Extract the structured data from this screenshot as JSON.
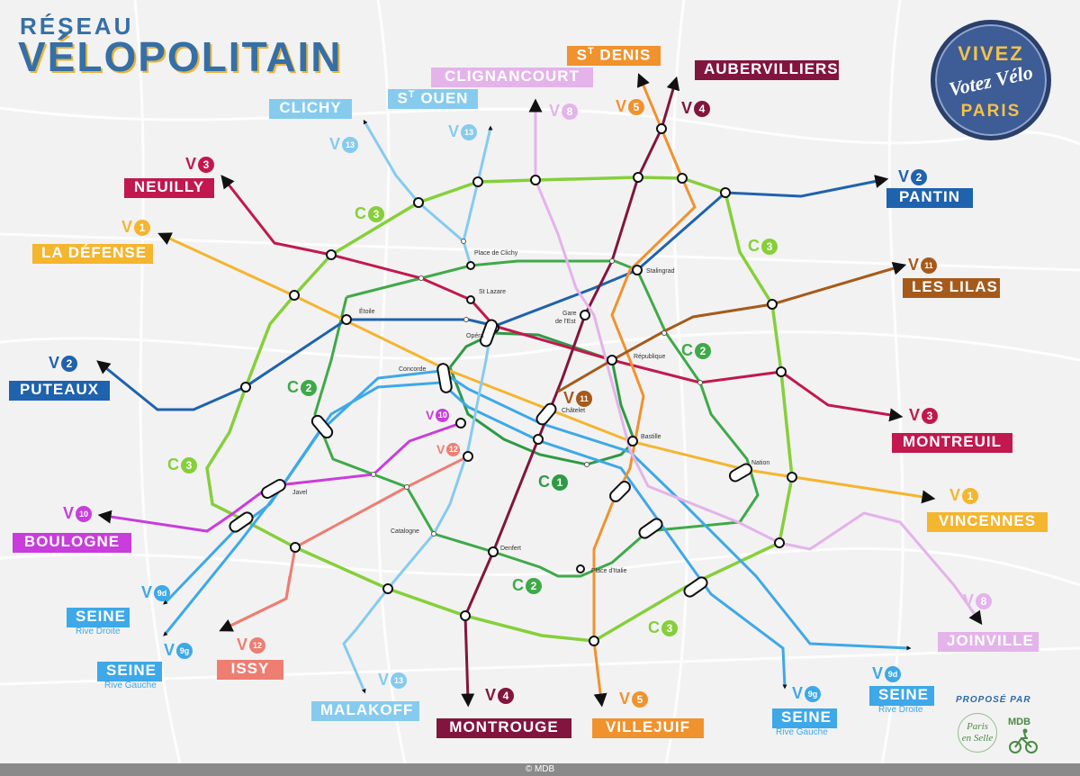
{
  "title": {
    "line1": "RÉSEAU",
    "line2": "VÉLOPOLITAIN"
  },
  "stamp": {
    "line1": "VIVEZ",
    "line2": "Votez Vélo",
    "line3": "PARIS"
  },
  "colors": {
    "C1": "#2f9a45",
    "C2": "#3fa949",
    "C3": "#86cf3a",
    "V1": "#f4b52f",
    "V2": "#1f62ad",
    "V3": "#c2184d",
    "V4": "#82153d",
    "V5": "#f0922e",
    "V8": "#e4b3ea",
    "V9": "#3ea8e8",
    "V10": "#c83ddb",
    "V11": "#a55a1b",
    "V12": "#ee7d72",
    "V13": "#86cbee"
  },
  "destinations": {
    "st_denis": {
      "pre": "S",
      "sup": "T",
      "text": " DENIS"
    },
    "aubervilliers": "AUBERVILLIERS",
    "clignancourt": "CLIGNANCOURT",
    "st_ouen": {
      "pre": "S",
      "sup": "T",
      "text": " OUEN"
    },
    "clichy": "CLICHY",
    "neuilly": "NEUILLY",
    "la_defense": "LA DÉFENSE",
    "pantin": "PANTIN",
    "les_lilas": "LES LILAS",
    "puteaux": "PUTEAUX",
    "montreuil": "MONTREUIL",
    "vincennes": "VINCENNES",
    "boulogne": "BOULOGNE",
    "seine_rd_left": "SEINE",
    "seine_rg_left": "SEINE",
    "issy": "ISSY",
    "malakoff": "MALAKOFF",
    "montrouge": "MONTROUGE",
    "villejuif": "VILLEJUIF",
    "seine_rg_right": "SEINE",
    "seine_rd_right": "SEINE",
    "joinville": "JOINVILLE"
  },
  "subtitles": {
    "rive_droite": "Rive Droite",
    "rive_gauche": "Rive Gauche"
  },
  "badges": {
    "V1": {
      "letter": "V",
      "num": "1"
    },
    "V2": {
      "letter": "V",
      "num": "2"
    },
    "V3": {
      "letter": "V",
      "num": "3"
    },
    "V4": {
      "letter": "V",
      "num": "4"
    },
    "V5": {
      "letter": "V",
      "num": "5"
    },
    "V8": {
      "letter": "V",
      "num": "8"
    },
    "V9d": {
      "letter": "V",
      "num": "9d"
    },
    "V9g": {
      "letter": "V",
      "num": "9g"
    },
    "V10": {
      "letter": "V",
      "num": "10"
    },
    "V11": {
      "letter": "V",
      "num": "11"
    },
    "V12": {
      "letter": "V",
      "num": "12"
    },
    "V13": {
      "letter": "V",
      "num": "13"
    },
    "C1": {
      "letter": "C",
      "num": "1"
    },
    "C2": {
      "letter": "C",
      "num": "2"
    },
    "C3": {
      "letter": "C",
      "num": "3"
    }
  },
  "stations": {
    "place_de_clichy": "Place de Clichy",
    "st_lazare": "St Lazare",
    "etoile": "Étoile",
    "opera": "Opéra",
    "gare_de_lest_1": "Gare",
    "gare_de_lest_2": "de l'Est",
    "stalingrad": "Stalingrad",
    "republique": "République",
    "concorde": "Concorde",
    "chatelet": "Châtelet",
    "bastille": "Bastille",
    "nation": "Nation",
    "javel": "Javel",
    "catalogne": "Catalogne",
    "denfert": "Denfert",
    "place_ditalie": "Place d'Italie"
  },
  "credits": {
    "propose_par": "PROPOSÉ PAR",
    "logo1_line1": "Paris",
    "logo1_line2": "en Selle",
    "logo2": "MDB",
    "footer": "© MDB"
  }
}
